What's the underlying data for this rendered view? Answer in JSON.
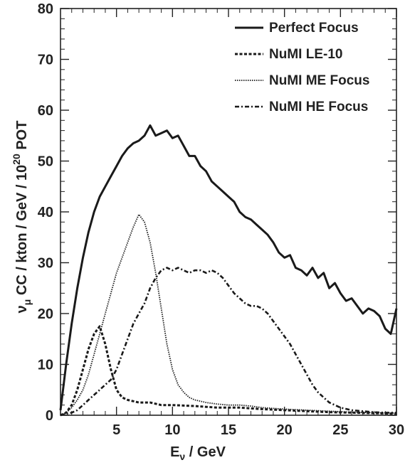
{
  "chart_data": {
    "type": "line",
    "xlabel": {
      "main": "E",
      "sub": "ν",
      "rest": " / GeV"
    },
    "ylabel": {
      "nu": "ν",
      "mu": "μ",
      "text": " CC / kton / GeV / 10",
      "exp": "20",
      "tail": " POT"
    },
    "xlim": [
      0,
      30
    ],
    "ylim": [
      0,
      80
    ],
    "xticks": [
      5,
      10,
      15,
      20,
      25,
      30
    ],
    "yticks": [
      0,
      10,
      20,
      30,
      40,
      50,
      60,
      70,
      80
    ],
    "grid": false,
    "legend_position": "top-right",
    "series": [
      {
        "name": "Perfect Focus",
        "style": "solid",
        "x": [
          0,
          0.5,
          1,
          1.5,
          2,
          2.5,
          3,
          3.5,
          4,
          4.5,
          5,
          5.5,
          6,
          6.5,
          7,
          7.5,
          8,
          8.5,
          9,
          9.5,
          10,
          10.5,
          11,
          11.5,
          12,
          12.5,
          13,
          13.5,
          14,
          14.5,
          15,
          15.5,
          16,
          16.5,
          17,
          17.5,
          18,
          18.5,
          19,
          19.5,
          20,
          20.5,
          21,
          21.5,
          22,
          22.5,
          23,
          23.5,
          24,
          24.5,
          25,
          25.5,
          26,
          26.5,
          27,
          27.5,
          28,
          28.5,
          29,
          29.5,
          30
        ],
        "y": [
          1,
          10,
          18,
          25,
          31,
          36,
          40,
          43,
          45,
          47,
          49,
          51,
          52.5,
          53.5,
          54,
          55,
          57,
          55,
          55.5,
          56,
          54.5,
          55,
          53,
          51,
          51,
          49,
          48,
          46,
          45,
          44,
          43,
          42,
          40,
          39,
          38.5,
          37.5,
          36.5,
          35.5,
          34,
          32,
          31,
          31.5,
          29,
          28.5,
          27.5,
          29,
          27,
          28,
          25,
          26,
          24,
          22.5,
          23,
          21.5,
          20,
          21,
          20.5,
          19.5,
          17,
          16,
          21
        ]
      },
      {
        "name": "NuMI LE-10",
        "style": "dashed",
        "x": [
          0,
          0.5,
          1,
          1.5,
          2,
          2.5,
          3,
          3.5,
          4,
          4.5,
          5,
          5.5,
          6,
          7,
          8,
          9,
          10,
          12,
          14,
          16,
          18,
          20,
          22,
          24,
          26,
          28,
          30
        ],
        "y": [
          0,
          0.5,
          2,
          5,
          9,
          13,
          16,
          17.5,
          14,
          9,
          5,
          3.5,
          3,
          2.5,
          2.5,
          2,
          2,
          1.8,
          1.5,
          1.5,
          1.2,
          1,
          0.8,
          0.6,
          0.5,
          0.4,
          0.3
        ]
      },
      {
        "name": "NuMI ME Focus",
        "style": "dotted",
        "x": [
          0,
          0.5,
          1,
          1.5,
          2,
          2.5,
          3,
          3.5,
          4,
          4.5,
          5,
          5.5,
          6,
          6.5,
          7,
          7.5,
          8,
          8.5,
          9,
          9.5,
          10,
          10.5,
          11,
          11.5,
          12,
          13,
          14,
          15,
          16,
          17,
          18,
          20,
          22,
          24,
          26,
          28,
          30
        ],
        "y": [
          0,
          0.5,
          1.5,
          3,
          5,
          8,
          12,
          16,
          20,
          24,
          28,
          31,
          34,
          37,
          39.5,
          38,
          34,
          28,
          21,
          14,
          9,
          6,
          4.5,
          3.5,
          3,
          2.5,
          2.2,
          2,
          2,
          1.8,
          1.5,
          1.2,
          1,
          0.8,
          0.6,
          0.5,
          0.4
        ]
      },
      {
        "name": "NuMI HE Focus",
        "style": "dashdot",
        "x": [
          0,
          0.5,
          1,
          1.5,
          2,
          2.5,
          3,
          3.5,
          4,
          4.5,
          5,
          5.5,
          6,
          6.5,
          7,
          7.5,
          8,
          8.5,
          9,
          9.5,
          10,
          10.5,
          11,
          11.5,
          12,
          12.5,
          13,
          13.5,
          14,
          14.5,
          15,
          15.5,
          16,
          16.5,
          17,
          17.5,
          18,
          18.5,
          19,
          19.5,
          20,
          20.5,
          21,
          21.5,
          22,
          22.5,
          23,
          23.5,
          24,
          24.5,
          25,
          26,
          27,
          28,
          29,
          30
        ],
        "y": [
          0,
          0.3,
          0.5,
          1,
          2,
          3,
          4,
          5,
          6,
          7,
          9,
          12,
          15,
          18,
          20,
          22,
          25,
          27,
          28.5,
          29,
          28.5,
          29,
          28.5,
          28,
          28.5,
          28.5,
          28,
          28.5,
          28,
          27,
          25.5,
          24,
          23,
          22,
          21.5,
          21.5,
          21,
          20,
          18.5,
          17,
          15.5,
          14,
          12,
          10,
          8,
          6,
          4.5,
          3.5,
          2.5,
          2,
          1.5,
          1,
          0.8,
          0.6,
          0.5,
          0.5
        ]
      }
    ]
  }
}
